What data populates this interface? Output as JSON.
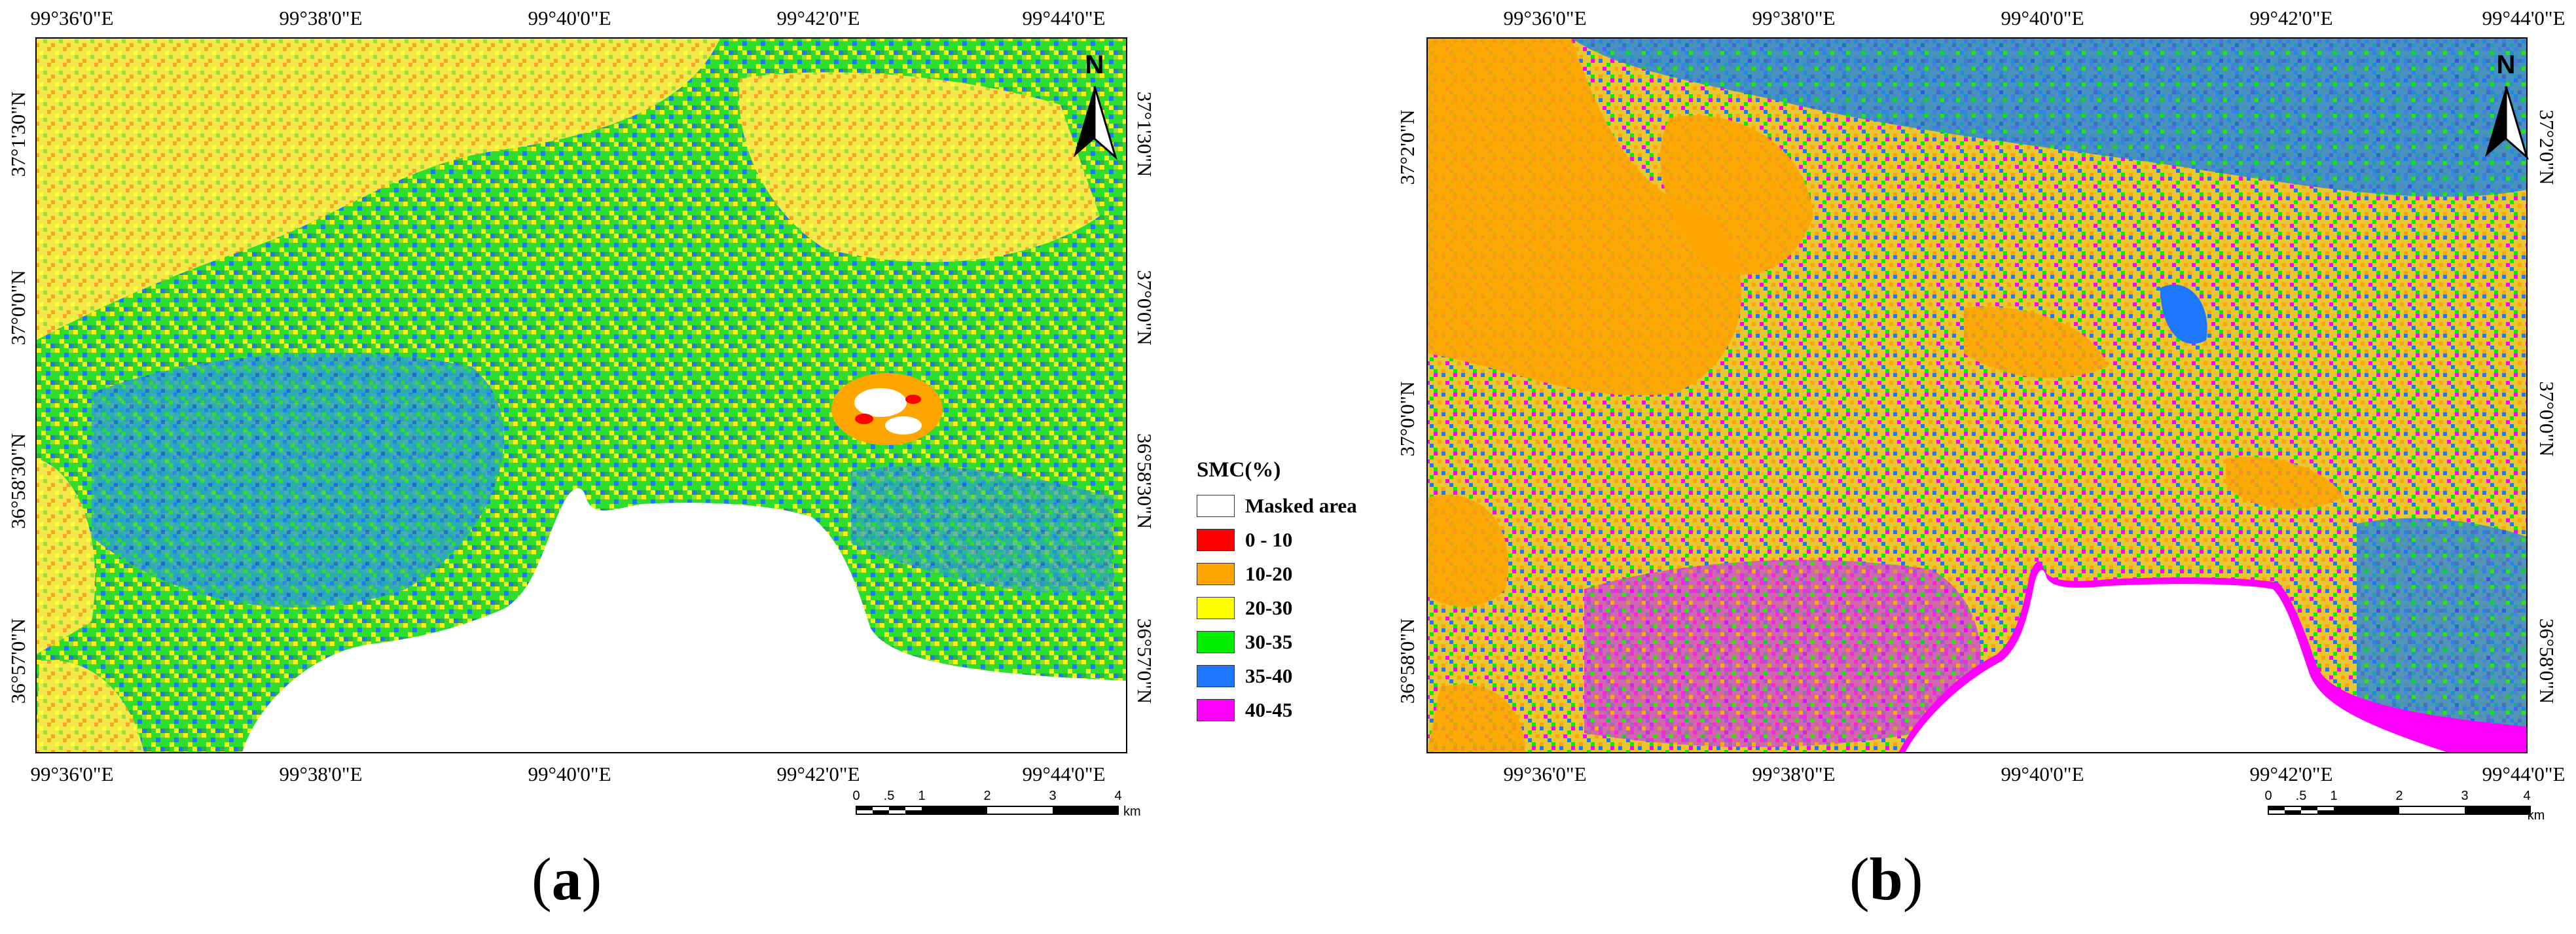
{
  "panels": [
    {
      "label": "(a)",
      "label_letter": "a",
      "top_ticks": [
        "99°36'0\"E",
        "99°38'0\"E",
        "99°40'0\"E",
        "99°42'0\"E",
        "99°44'0\"E"
      ],
      "bottom_ticks": [
        "99°36'0\"E",
        "99°38'0\"E",
        "99°40'0\"E",
        "99°42'0\"E",
        "99°44'0\"E"
      ],
      "left_ticks": [
        "37°1'30\"N",
        "37°0'0\"N",
        "36°58'30\"N",
        "36°57'0\"N"
      ],
      "right_ticks": [
        "37°1'30\"N",
        "37°0'0\"N",
        "36°58'30\"N",
        "36°57'0\"N"
      ],
      "north": "N",
      "scalebar": {
        "labels": [
          "0",
          ".5",
          "1",
          "2",
          "3",
          "4"
        ],
        "unit": "km"
      }
    },
    {
      "label": "(b)",
      "label_letter": "b",
      "top_ticks": [
        "99°36'0\"E",
        "99°38'0\"E",
        "99°40'0\"E",
        "99°42'0\"E",
        "99°44'0\"E"
      ],
      "bottom_ticks": [
        "99°36'0\"E",
        "99°38'0\"E",
        "99°40'0\"E",
        "99°42'0\"E",
        "99°44'0\"E"
      ],
      "left_ticks": [
        "37°2'0\"N",
        "37°0'0\"N",
        "36°58'0\"N"
      ],
      "right_ticks": [
        "37°2'0\"N",
        "37°0'0\"N",
        "36°58'0\"N"
      ],
      "north": "N",
      "scalebar": {
        "labels": [
          "0",
          ".5",
          "1",
          "2",
          "3",
          "4"
        ],
        "unit": "km"
      }
    }
  ],
  "legend": {
    "title": "SMC(%)",
    "items": [
      {
        "label": "Masked area",
        "color": "#ffffff"
      },
      {
        "label": "0 - 10",
        "color": "#ff0000"
      },
      {
        "label": "10-20",
        "color": "#ffa500"
      },
      {
        "label": "20-30",
        "color": "#ffff00"
      },
      {
        "label": "30-35",
        "color": "#00ee00"
      },
      {
        "label": "35-40",
        "color": "#1e78ff"
      },
      {
        "label": "40-45",
        "color": "#ff00ff"
      }
    ]
  }
}
